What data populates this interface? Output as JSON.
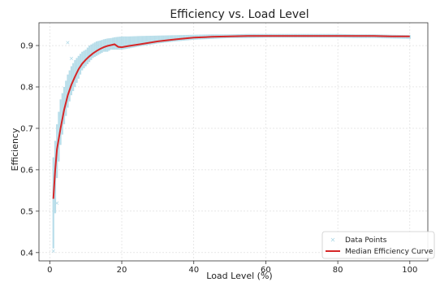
{
  "chart_data": {
    "type": "scatter",
    "title": "Efficiency vs. Load Level",
    "xlabel": "Load Level (%)",
    "ylabel": "Efficiency",
    "xlim": [
      -3,
      105
    ],
    "ylim": [
      0.38,
      0.955
    ],
    "xticks": [
      0,
      20,
      40,
      60,
      80,
      100
    ],
    "yticks": [
      0.4,
      0.5,
      0.6,
      0.7,
      0.8,
      0.9
    ],
    "xtick_labels": [
      "0",
      "20",
      "40",
      "60",
      "80",
      "100"
    ],
    "ytick_labels": [
      "0.4",
      "0.5",
      "0.6",
      "0.7",
      "0.8",
      "0.9"
    ],
    "grid": true,
    "legend_position": "lower-right",
    "series": [
      {
        "name": "Data Points",
        "kind": "scatter-band",
        "color": "#add8e6",
        "marker": "x",
        "x": [
          1,
          2,
          3,
          4,
          5,
          6,
          7,
          8,
          9,
          10,
          11,
          12,
          13,
          14,
          15,
          16,
          17,
          18,
          19,
          20,
          22,
          25,
          30,
          35,
          40,
          45,
          50,
          55,
          60,
          65,
          70,
          75,
          80,
          85,
          90,
          95,
          100
        ],
        "ymin": [
          0.41,
          0.58,
          0.66,
          0.71,
          0.75,
          0.78,
          0.8,
          0.82,
          0.84,
          0.85,
          0.86,
          0.87,
          0.875,
          0.88,
          0.885,
          0.885,
          0.89,
          0.89,
          0.89,
          0.89,
          0.893,
          0.898,
          0.905,
          0.91,
          0.914,
          0.916,
          0.918,
          0.918,
          0.919,
          0.919,
          0.919,
          0.919,
          0.919,
          0.918,
          0.918,
          0.917,
          0.916
        ],
        "ymax": [
          0.63,
          0.71,
          0.77,
          0.8,
          0.83,
          0.85,
          0.865,
          0.875,
          0.885,
          0.89,
          0.9,
          0.905,
          0.91,
          0.912,
          0.915,
          0.917,
          0.918,
          0.92,
          0.921,
          0.922,
          0.922,
          0.923,
          0.924,
          0.925,
          0.926,
          0.927,
          0.927,
          0.928,
          0.928,
          0.928,
          0.928,
          0.928,
          0.928,
          0.927,
          0.927,
          0.926,
          0.925
        ]
      },
      {
        "name": "Median Efficiency Curve",
        "kind": "line",
        "color": "#d62728",
        "x": [
          1,
          1.5,
          2,
          3,
          4,
          5,
          6,
          7,
          8,
          9,
          10,
          11,
          12,
          13,
          14,
          15,
          16,
          17,
          18,
          19,
          20,
          22,
          25,
          30,
          35,
          40,
          45,
          50,
          55,
          60,
          65,
          70,
          75,
          80,
          85,
          90,
          95,
          100
        ],
        "y": [
          0.53,
          0.6,
          0.65,
          0.7,
          0.745,
          0.78,
          0.805,
          0.825,
          0.843,
          0.856,
          0.866,
          0.874,
          0.881,
          0.887,
          0.892,
          0.896,
          0.899,
          0.901,
          0.903,
          0.897,
          0.896,
          0.899,
          0.903,
          0.91,
          0.915,
          0.919,
          0.921,
          0.922,
          0.923,
          0.923,
          0.923,
          0.923,
          0.923,
          0.923,
          0.923,
          0.923,
          0.922,
          0.922
        ]
      }
    ],
    "outliers": [
      {
        "x": 5,
        "y": 0.908
      },
      {
        "x": 6,
        "y": 0.87
      },
      {
        "x": 1,
        "y": 0.405
      },
      {
        "x": 2,
        "y": 0.52
      }
    ]
  }
}
